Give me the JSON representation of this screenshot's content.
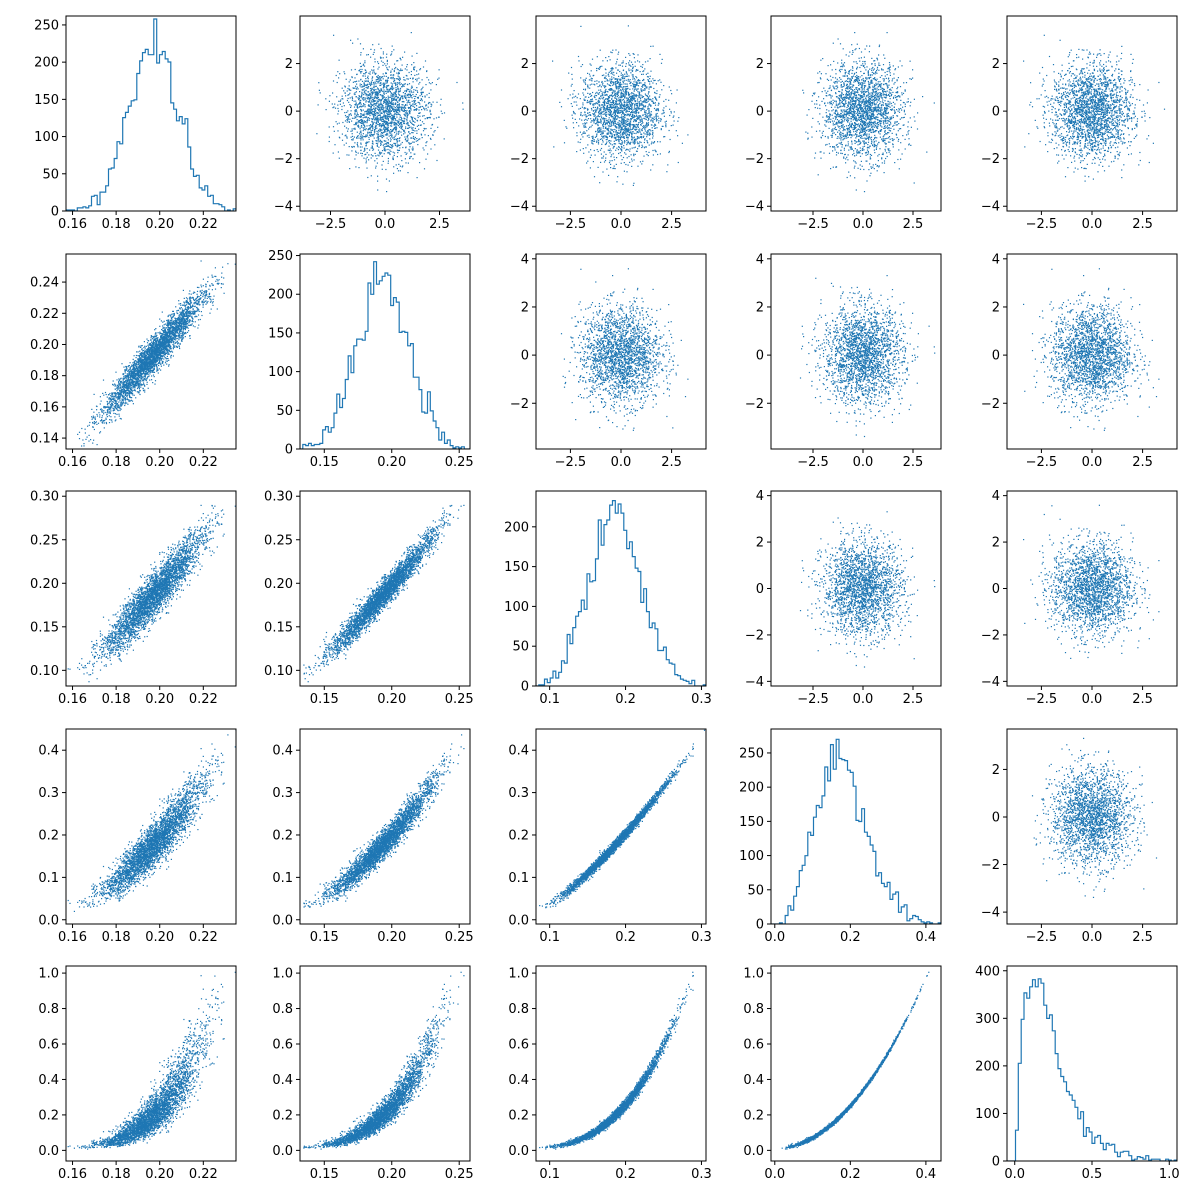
{
  "chart_data": {
    "type": "scatter-matrix",
    "grid": false,
    "legend": "none",
    "colors": {
      "marker": "#1f77b4",
      "axes": "#000000",
      "background": "#ffffff"
    },
    "columns": [
      {
        "name": "",
        "mean": 0.197,
        "sd": 0.0115,
        "xlim": [
          0.157,
          0.235
        ],
        "xticks": [
          "0.16",
          "0.18",
          "0.20",
          "0.22"
        ],
        "xtick_values": [
          0.16,
          0.18,
          0.2,
          0.22
        ]
      },
      {
        "name": "",
        "mean": 0.193,
        "sd": 0.0195,
        "xlim": [
          0.132,
          0.258
        ],
        "xticks": [
          "0.15",
          "0.20",
          "0.25"
        ],
        "xtick_values": [
          0.15,
          0.2,
          0.25
        ]
      },
      {
        "name": "",
        "mean": 0.19,
        "sd": 0.0335,
        "xlim": [
          0.082,
          0.306
        ],
        "xticks": [
          "0.1",
          "0.2",
          "0.3"
        ],
        "xtick_values": [
          0.1,
          0.2,
          0.3
        ]
      },
      {
        "name": "",
        "mean": 0.183,
        "sd": 0.066,
        "xlim": [
          -0.01,
          0.44
        ],
        "xticks": [
          "0.0",
          "0.2",
          "0.4"
        ],
        "xtick_values": [
          0.0,
          0.2,
          0.4
        ]
      },
      {
        "name": "",
        "mean": 0.2,
        "sd": 0.13,
        "xlim": [
          -0.05,
          1.05
        ],
        "xticks": [
          "0.0",
          "0.5",
          "1.0"
        ],
        "xtick_values": [
          0.0,
          0.5,
          1.0
        ]
      }
    ],
    "noise_axis": {
      "xlim": [
        -4.2,
        4.2
      ],
      "xticks": [
        "−2.5",
        "0.0",
        "2.5"
      ],
      "xtick_values": [
        -2.5,
        0,
        2.5
      ],
      "ylim": [
        -4.2,
        4.0
      ],
      "yticks": [
        "−4",
        "−2",
        "0",
        "2"
      ],
      "ytick_values": [
        -4,
        -2,
        0,
        2
      ]
    },
    "panels": [
      {
        "row": 0,
        "col": 0,
        "kind": "hist",
        "ylim": [
          0,
          262
        ],
        "yticks": [
          "0",
          "50",
          "100",
          "150",
          "200",
          "250"
        ],
        "ytick_values": [
          0,
          50,
          100,
          150,
          200,
          250
        ],
        "peak": 258
      },
      {
        "row": 0,
        "col": 1,
        "kind": "noise",
        "xlim": [
          -3.9,
          3.9
        ],
        "ylim": [
          -4.2,
          4.0
        ],
        "yticks": [
          "−4",
          "−2",
          "0",
          "2"
        ],
        "ytick_values": [
          -4,
          -2,
          0,
          2
        ]
      },
      {
        "row": 0,
        "col": 2,
        "kind": "noise",
        "xlim": [
          -4.2,
          4.2
        ],
        "ylim": [
          -4.2,
          4.0
        ],
        "yticks": [
          "−4",
          "−2",
          "0",
          "2"
        ],
        "ytick_values": [
          -4,
          -2,
          0,
          2
        ]
      },
      {
        "row": 0,
        "col": 3,
        "kind": "noise",
        "xlim": [
          -4.6,
          3.9
        ],
        "ylim": [
          -4.2,
          4.0
        ],
        "yticks": [
          "−4",
          "−2",
          "0",
          "2"
        ],
        "ytick_values": [
          -4,
          -2,
          0,
          2
        ]
      },
      {
        "row": 0,
        "col": 4,
        "kind": "noise",
        "xlim": [
          -4.2,
          4.2
        ],
        "ylim": [
          -4.2,
          4.0
        ],
        "yticks": [
          "−4",
          "−2",
          "0",
          "2"
        ],
        "ytick_values": [
          -4,
          -2,
          0,
          2
        ]
      },
      {
        "row": 1,
        "col": 0,
        "kind": "scatter",
        "ylim": [
          0.133,
          0.258
        ],
        "yticks": [
          "0.14",
          "0.16",
          "0.18",
          "0.20",
          "0.22",
          "0.24"
        ],
        "ytick_values": [
          0.14,
          0.16,
          0.18,
          0.2,
          0.22,
          0.24
        ]
      },
      {
        "row": 1,
        "col": 1,
        "kind": "hist",
        "ylim": [
          0,
          252
        ],
        "yticks": [
          "0",
          "50",
          "100",
          "150",
          "200",
          "250"
        ],
        "ytick_values": [
          0,
          50,
          100,
          150,
          200,
          250
        ],
        "peak": 242
      },
      {
        "row": 1,
        "col": 2,
        "kind": "noise",
        "xlim": [
          -4.2,
          4.2
        ],
        "ylim": [
          -3.9,
          4.2
        ],
        "yticks": [
          "−2",
          "0",
          "2",
          "4"
        ],
        "ytick_values": [
          -2,
          0,
          2,
          4
        ]
      },
      {
        "row": 1,
        "col": 3,
        "kind": "noise",
        "xlim": [
          -4.6,
          3.9
        ],
        "ylim": [
          -3.9,
          4.2
        ],
        "yticks": [
          "−2",
          "0",
          "2",
          "4"
        ],
        "ytick_values": [
          -2,
          0,
          2,
          4
        ]
      },
      {
        "row": 1,
        "col": 4,
        "kind": "noise",
        "xlim": [
          -4.2,
          4.2
        ],
        "ylim": [
          -3.9,
          4.2
        ],
        "yticks": [
          "−2",
          "0",
          "2",
          "4"
        ],
        "ytick_values": [
          -2,
          0,
          2,
          4
        ]
      },
      {
        "row": 2,
        "col": 0,
        "kind": "scatter",
        "ylim": [
          0.082,
          0.306
        ],
        "yticks": [
          "0.10",
          "0.15",
          "0.20",
          "0.25",
          "0.30"
        ],
        "ytick_values": [
          0.1,
          0.15,
          0.2,
          0.25,
          0.3
        ]
      },
      {
        "row": 2,
        "col": 1,
        "kind": "scatter",
        "ylim": [
          0.082,
          0.306
        ],
        "yticks": [
          "0.10",
          "0.15",
          "0.20",
          "0.25",
          "0.30"
        ],
        "ytick_values": [
          0.1,
          0.15,
          0.2,
          0.25,
          0.3
        ]
      },
      {
        "row": 2,
        "col": 2,
        "kind": "hist",
        "ylim": [
          0,
          245
        ],
        "yticks": [
          "0",
          "50",
          "100",
          "150",
          "200"
        ],
        "ytick_values": [
          0,
          50,
          100,
          150,
          200
        ],
        "peak": 233
      },
      {
        "row": 2,
        "col": 3,
        "kind": "noise",
        "xlim": [
          -4.6,
          3.9
        ],
        "ylim": [
          -4.2,
          4.2
        ],
        "yticks": [
          "−4",
          "−2",
          "0",
          "2",
          "4"
        ],
        "ytick_values": [
          -4,
          -2,
          0,
          2,
          4
        ]
      },
      {
        "row": 2,
        "col": 4,
        "kind": "noise",
        "xlim": [
          -4.2,
          4.2
        ],
        "ylim": [
          -4.2,
          4.2
        ],
        "yticks": [
          "−4",
          "−2",
          "0",
          "2",
          "4"
        ],
        "ytick_values": [
          -4,
          -2,
          0,
          2,
          4
        ]
      },
      {
        "row": 3,
        "col": 0,
        "kind": "scatter",
        "ylim": [
          -0.01,
          0.45
        ],
        "yticks": [
          "0.0",
          "0.1",
          "0.2",
          "0.3",
          "0.4"
        ],
        "ytick_values": [
          0.0,
          0.1,
          0.2,
          0.3,
          0.4
        ]
      },
      {
        "row": 3,
        "col": 1,
        "kind": "scatter",
        "ylim": [
          -0.01,
          0.45
        ],
        "yticks": [
          "0.0",
          "0.1",
          "0.2",
          "0.3",
          "0.4"
        ],
        "ytick_values": [
          0.0,
          0.1,
          0.2,
          0.3,
          0.4
        ]
      },
      {
        "row": 3,
        "col": 2,
        "kind": "scatter",
        "ylim": [
          -0.01,
          0.45
        ],
        "yticks": [
          "0.0",
          "0.1",
          "0.2",
          "0.3",
          "0.4"
        ],
        "ytick_values": [
          0.0,
          0.1,
          0.2,
          0.3,
          0.4
        ]
      },
      {
        "row": 3,
        "col": 3,
        "kind": "hist",
        "ylim": [
          0,
          285
        ],
        "yticks": [
          "0",
          "50",
          "100",
          "150",
          "200",
          "250"
        ],
        "ytick_values": [
          0,
          50,
          100,
          150,
          200,
          250
        ],
        "peak": 270
      },
      {
        "row": 3,
        "col": 4,
        "kind": "noise",
        "xlim": [
          -4.2,
          4.2
        ],
        "ylim": [
          -4.5,
          3.7
        ],
        "yticks": [
          "−4",
          "−2",
          "0",
          "2"
        ],
        "ytick_values": [
          -4,
          -2,
          0,
          2
        ]
      },
      {
        "row": 4,
        "col": 0,
        "kind": "scatter",
        "ylim": [
          -0.06,
          1.04
        ],
        "yticks": [
          "0.0",
          "0.2",
          "0.4",
          "0.6",
          "0.8",
          "1.0"
        ],
        "ytick_values": [
          0.0,
          0.2,
          0.4,
          0.6,
          0.8,
          1.0
        ]
      },
      {
        "row": 4,
        "col": 1,
        "kind": "scatter",
        "ylim": [
          -0.06,
          1.04
        ],
        "yticks": [
          "0.0",
          "0.2",
          "0.4",
          "0.6",
          "0.8",
          "1.0"
        ],
        "ytick_values": [
          0.0,
          0.2,
          0.4,
          0.6,
          0.8,
          1.0
        ]
      },
      {
        "row": 4,
        "col": 2,
        "kind": "scatter",
        "ylim": [
          -0.06,
          1.04
        ],
        "yticks": [
          "0.0",
          "0.2",
          "0.4",
          "0.6",
          "0.8",
          "1.0"
        ],
        "ytick_values": [
          0.0,
          0.2,
          0.4,
          0.6,
          0.8,
          1.0
        ]
      },
      {
        "row": 4,
        "col": 3,
        "kind": "scatter",
        "ylim": [
          -0.06,
          1.04
        ],
        "yticks": [
          "0.0",
          "0.2",
          "0.4",
          "0.6",
          "0.8",
          "1.0"
        ],
        "ytick_values": [
          0.0,
          0.2,
          0.4,
          0.6,
          0.8,
          1.0
        ]
      },
      {
        "row": 4,
        "col": 4,
        "kind": "hist",
        "ylim": [
          0,
          410
        ],
        "yticks": [
          "0",
          "100",
          "200",
          "300",
          "400"
        ],
        "ytick_values": [
          0,
          100,
          200,
          300,
          400
        ],
        "peak": 383
      }
    ]
  }
}
